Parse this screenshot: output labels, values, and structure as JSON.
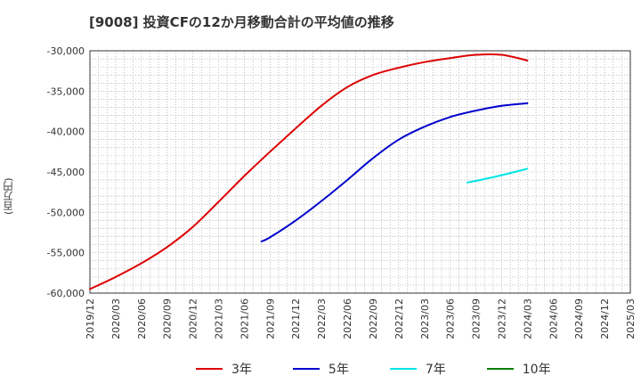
{
  "title": "[9008]  投資CFの12か月移動合計の平均値の推移",
  "y_axis_label": "(百万円)",
  "chart_data": {
    "type": "line",
    "title": "[9008]  投資CFの12か月移動合計の平均値の推移",
    "ylabel": "(百万円)",
    "xlabel": "",
    "ylim": [
      -60000,
      -30000
    ],
    "y_ticks": [
      -30000,
      -35000,
      -40000,
      -45000,
      -50000,
      -55000,
      -60000
    ],
    "y_tick_labels": [
      "-30,000",
      "-35,000",
      "-40,000",
      "-45,000",
      "-50,000",
      "-55,000",
      "-60,000"
    ],
    "x_ticks": [
      "2019/12",
      "2020/03",
      "2020/06",
      "2020/09",
      "2020/12",
      "2021/03",
      "2021/06",
      "2021/09",
      "2021/12",
      "2022/03",
      "2022/06",
      "2022/09",
      "2022/12",
      "2023/03",
      "2023/06",
      "2023/09",
      "2023/12",
      "2024/03",
      "2024/06",
      "2024/09",
      "2024/12",
      "2025/03"
    ],
    "grid": true,
    "legend_position": "bottom",
    "series": [
      {
        "name": "3年",
        "color": "#dd0000",
        "x": [
          "2019/12",
          "2020/03",
          "2020/06",
          "2020/09",
          "2020/12",
          "2021/03",
          "2021/06",
          "2021/09",
          "2021/12",
          "2022/03",
          "2022/06",
          "2022/09",
          "2022/12",
          "2023/03",
          "2023/06",
          "2023/09",
          "2023/12",
          "2024/03"
        ],
        "values": [
          -59500,
          -58000,
          -56300,
          -54300,
          -51800,
          -48700,
          -45500,
          -42500,
          -39600,
          -36800,
          -34500,
          -33000,
          -32100,
          -31400,
          -30900,
          -30500,
          -30500,
          -31200
        ]
      },
      {
        "name": "5年",
        "color": "#0000cc",
        "x": [
          "2021/08",
          "2021/09",
          "2021/12",
          "2022/03",
          "2022/06",
          "2022/09",
          "2022/12",
          "2023/03",
          "2023/06",
          "2023/09",
          "2023/12",
          "2024/03"
        ],
        "values": [
          -53600,
          -53100,
          -51000,
          -48600,
          -46000,
          -43300,
          -41000,
          -39400,
          -38200,
          -37400,
          -36800,
          -36500
        ]
      },
      {
        "name": "7年",
        "color": "#00e5e5",
        "x": [
          "2023/08",
          "2023/09",
          "2023/12",
          "2024/03"
        ],
        "values": [
          -46300,
          -46100,
          -45400,
          -44600
        ]
      },
      {
        "name": "10年",
        "color": "#008000",
        "x": [],
        "values": []
      }
    ]
  }
}
